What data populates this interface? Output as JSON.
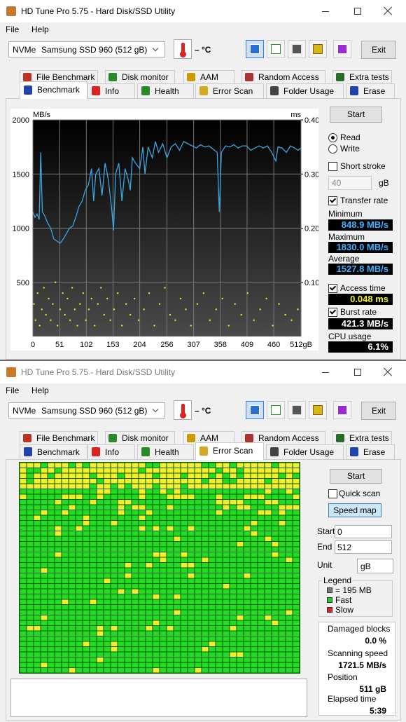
{
  "windows": [
    {
      "title": "HD Tune Pro 5.75 - Hard Disk/SSD Utility",
      "menu": [
        "File",
        "Help"
      ],
      "drive_bus": "NVMe",
      "drive_model": "Samsung SSD 960 (512 gB)",
      "temperature": "– °C",
      "exit": "Exit",
      "tabs_row1": [
        "File Benchmark",
        "Disk monitor",
        "AAM",
        "Random Access",
        "Extra tests"
      ],
      "tabs_row2": [
        "Benchmark",
        "Info",
        "Health",
        "Error Scan",
        "Folder Usage",
        "Erase"
      ]
    },
    {
      "title": "HD Tune Pro 5.75 - Hard Disk/SSD Utility",
      "menu": [
        "File",
        "Help"
      ],
      "drive_bus": "NVMe",
      "drive_model": "Samsung SSD 960 (512 gB)",
      "temperature": "– °C",
      "exit": "Exit",
      "tabs_row1": [
        "File Benchmark",
        "Disk monitor",
        "AAM",
        "Random Access",
        "Extra tests"
      ],
      "tabs_row2": [
        "Benchmark",
        "Info",
        "Health",
        "Error Scan",
        "Folder Usage",
        "Erase"
      ]
    }
  ],
  "benchmark": {
    "start": "Start",
    "read": "Read",
    "write": "Write",
    "short_stroke": "Short stroke",
    "stroke_size": "40",
    "stroke_unit": "gB",
    "transfer_rate": "Transfer rate",
    "minimum_label": "Minimum",
    "minimum": "848.9 MB/s",
    "maximum_label": "Maximum",
    "maximum": "1830.0 MB/s",
    "average_label": "Average",
    "average": "1527.8 MB/s",
    "access_time_label": "Access time",
    "access_time": "0.048 ms",
    "burst_rate_label": "Burst rate",
    "burst_rate": "421.3 MB/s",
    "cpu_usage_label": "CPU usage",
    "cpu_usage": "6.1%"
  },
  "chart_data": {
    "type": "line",
    "y_label": "MB/s",
    "y2_label": "ms",
    "xlim": [
      0,
      512
    ],
    "xticks": [
      0,
      51,
      102,
      153,
      204,
      256,
      307,
      358,
      409,
      460,
      {
        "value": 512,
        "label": "512gB"
      }
    ],
    "ylim": [
      0,
      2000
    ],
    "yticks": [
      500,
      1000,
      1500,
      2000
    ],
    "y2lim": [
      0,
      0.4
    ],
    "y2ticks": [
      {
        "value": 0.1,
        "label": "0.10"
      },
      {
        "value": 0.2,
        "label": "0.20"
      },
      {
        "value": 0.3,
        "label": "0.30"
      },
      {
        "value": 0.4,
        "label": "0.40"
      }
    ],
    "grid": true,
    "series": [
      {
        "type": "line",
        "color": "#3aa6e0",
        "x": [
          0,
          4,
          8,
          12,
          15,
          18,
          22,
          28,
          34,
          40,
          46,
          52,
          58,
          64,
          70,
          76,
          82,
          88,
          94,
          100,
          106,
          112,
          116,
          120,
          126,
          132,
          138,
          144,
          150,
          154,
          158,
          164,
          170,
          176,
          182,
          186,
          190,
          196,
          204,
          210,
          214,
          220,
          228,
          234,
          240,
          248,
          256,
          264,
          272,
          280,
          288,
          296,
          304,
          312,
          320,
          328,
          336,
          344,
          352,
          356,
          360,
          368,
          376,
          384,
          392,
          400,
          408,
          416,
          424,
          432,
          440,
          448,
          456,
          464,
          468,
          476,
          484,
          492,
          500,
          506,
          512
        ],
        "values": [
          1150,
          1100,
          1130,
          1080,
          1700,
          1150,
          1120,
          1050,
          1000,
          900,
          880,
          860,
          900,
          950,
          1000,
          1020,
          1100,
          1200,
          1250,
          1350,
          1400,
          1550,
          1250,
          1500,
          1550,
          1300,
          1600,
          1450,
          1200,
          980,
          1500,
          1600,
          1250,
          1550,
          1450,
          1350,
          1650,
          1600,
          1550,
          1750,
          1500,
          1750,
          1650,
          1800,
          1700,
          1780,
          1650,
          1750,
          1780,
          1720,
          1800,
          1780,
          1760,
          1740,
          1770,
          1750,
          1760,
          1730,
          1700,
          1150,
          1700,
          1760,
          1750,
          1770,
          1740,
          1760,
          1760,
          1720,
          1740,
          1760,
          1740,
          1760,
          1700,
          1620,
          1750,
          1740,
          1700,
          1760,
          1740,
          1720,
          1740
        ]
      },
      {
        "type": "scatter",
        "axis": "y2",
        "color": "#e8e830",
        "x": [
          2,
          5,
          9,
          13,
          17,
          21,
          25,
          30,
          34,
          38,
          43,
          47,
          52,
          57,
          61,
          66,
          71,
          75,
          80,
          85,
          90,
          96,
          101,
          107,
          112,
          118,
          124,
          130,
          136,
          142,
          148,
          155,
          162,
          170,
          178,
          186,
          194,
          202,
          212,
          222,
          232,
          242,
          252,
          262,
          272,
          282,
          292,
          302,
          314,
          326,
          338,
          350,
          362,
          374,
          386,
          398,
          410,
          422,
          434,
          446,
          458,
          470,
          482,
          494,
          506
        ],
        "values": [
          0.06,
          0.03,
          0.08,
          0.02,
          0.05,
          0.09,
          0.04,
          0.07,
          0.03,
          0.06,
          0.1,
          0.02,
          0.05,
          0.08,
          0.04,
          0.07,
          0.03,
          0.09,
          0.05,
          0.02,
          0.06,
          0.08,
          0.03,
          0.05,
          0.07,
          0.02,
          0.06,
          0.09,
          0.04,
          0.07,
          0.03,
          0.05,
          0.08,
          0.02,
          0.06,
          0.04,
          0.07,
          0.03,
          0.05,
          0.08,
          0.02,
          0.06,
          0.09,
          0.04,
          0.03,
          0.07,
          0.05,
          0.02,
          0.06,
          0.08,
          0.03,
          0.05,
          0.07,
          0.02,
          0.06,
          0.04,
          0.08,
          0.03,
          0.05,
          0.07,
          0.02,
          0.06,
          0.04,
          0.03,
          0.05
        ]
      }
    ]
  },
  "error_scan": {
    "start": "Start",
    "quick_scan": "Quick scan",
    "speed_map": "Speed map",
    "start_label": "Start",
    "start_value": "0",
    "end_label": "End",
    "end_value": "512",
    "unit_label": "Unit",
    "unit": "gB",
    "legend_title": "Legend",
    "legend": [
      "= 195 MB",
      "Fast",
      "Slow"
    ],
    "damaged_blocks_label": "Damaged blocks",
    "damaged_blocks": "0.0 %",
    "scanning_speed_label": "Scanning speed",
    "scanning_speed": "1721.5 MB/s",
    "position_label": "Position",
    "position": "511 gB",
    "elapsed_time_label": "Elapsed time",
    "elapsed_time": "5:39"
  }
}
